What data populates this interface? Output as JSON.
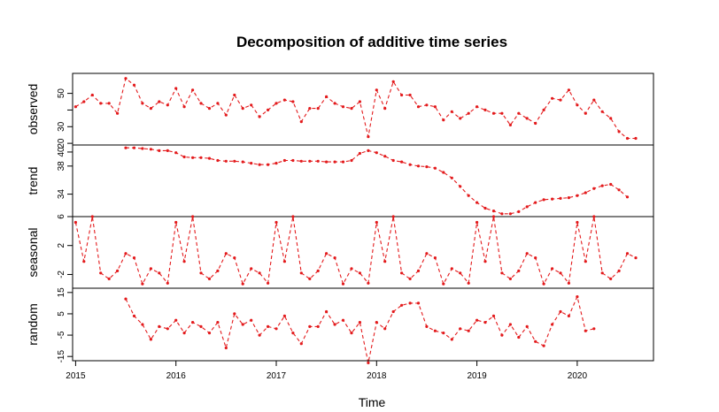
{
  "chart_data": {
    "type": "line",
    "title": "Decomposition of additive time series",
    "xlabel": "Time",
    "x_ticks": [
      "2015",
      "2016",
      "2017",
      "2018",
      "2019",
      "2020"
    ],
    "x_tick_values": [
      2015,
      2016,
      2017,
      2018,
      2019,
      2020
    ],
    "xlim": [
      2014.97,
      2020.76
    ],
    "color": "#e31a1c",
    "series_style": "dashed line with points",
    "panels": [
      {
        "name": "observed",
        "ylim": [
          19,
          62
        ],
        "y_ticks": [
          20,
          30,
          40,
          50
        ],
        "y_tick_labels": [
          "20",
          "30",
          "",
          "50"
        ],
        "start": 2015.0,
        "step": 0.083333,
        "values": [
          42,
          45,
          49,
          44,
          44,
          38,
          59,
          55,
          44,
          41,
          45,
          43,
          53,
          42,
          52,
          44,
          41,
          44,
          37,
          49,
          41,
          43,
          36,
          40,
          44,
          46,
          45,
          33,
          41,
          41,
          48,
          44,
          42,
          41,
          45,
          24,
          52,
          41,
          57,
          49,
          49,
          42,
          43,
          42,
          34,
          39,
          35,
          38,
          42,
          40,
          38,
          38,
          31,
          38,
          35,
          32,
          40,
          47,
          46,
          52,
          43,
          38,
          46,
          39,
          35,
          27,
          23,
          23
        ]
      },
      {
        "name": "trend",
        "ylim": [
          30.8,
          41.0
        ],
        "y_ticks": [
          34,
          38,
          40
        ],
        "y_tick_labels": [
          "34",
          "38",
          "40"
        ],
        "start": 2015.5,
        "step": 0.083333,
        "values": [
          40.6,
          40.6,
          40.5,
          40.4,
          40.2,
          40.2,
          39.9,
          39.3,
          39.2,
          39.2,
          39.1,
          38.8,
          38.7,
          38.7,
          38.6,
          38.4,
          38.2,
          38.2,
          38.4,
          38.8,
          38.8,
          38.7,
          38.7,
          38.7,
          38.6,
          38.6,
          38.6,
          38.8,
          39.8,
          40.2,
          39.9,
          39.4,
          38.8,
          38.6,
          38.2,
          38.0,
          37.9,
          37.7,
          37.1,
          36.3,
          35.1,
          33.8,
          32.8,
          32.0,
          31.6,
          31.2,
          31.2,
          31.5,
          32.2,
          32.8,
          33.2,
          33.3,
          33.4,
          33.5,
          33.8,
          34.2,
          34.8,
          35.2,
          35.4,
          34.6,
          33.6
        ]
      },
      {
        "name": "seasonal",
        "ylim": [
          -3.9,
          6.0
        ],
        "y_ticks": [
          -2,
          2,
          6
        ],
        "y_tick_labels": [
          "-2",
          "2",
          "6"
        ],
        "start": 2015.0,
        "step": 0.083333,
        "values": [
          5.2,
          -0.2,
          6.0,
          -1.8,
          -2.6,
          -1.5,
          0.9,
          0.3,
          -3.3,
          -1.2,
          -1.8,
          -3.2,
          5.2,
          -0.2,
          6.0,
          -1.8,
          -2.6,
          -1.5,
          0.9,
          0.3,
          -3.3,
          -1.2,
          -1.8,
          -3.2,
          5.2,
          -0.2,
          6.0,
          -1.8,
          -2.6,
          -1.5,
          0.9,
          0.3,
          -3.3,
          -1.2,
          -1.8,
          -3.2,
          5.2,
          -0.2,
          6.0,
          -1.8,
          -2.6,
          -1.5,
          0.9,
          0.3,
          -3.3,
          -1.2,
          -1.8,
          -3.2,
          5.2,
          -0.2,
          6.0,
          -1.8,
          -2.6,
          -1.5,
          0.9,
          0.3,
          -3.3,
          -1.2,
          -1.8,
          -3.2,
          5.2,
          -0.2,
          6.0,
          -1.8,
          -2.6,
          -1.5,
          0.9,
          0.3
        ]
      },
      {
        "name": "random",
        "ylim": [
          -17,
          17
        ],
        "y_ticks": [
          -15,
          -5,
          5,
          15
        ],
        "y_tick_labels": [
          "-15",
          "-5",
          "5",
          "15"
        ],
        "start": 2015.5,
        "step": 0.083333,
        "values": [
          12,
          4,
          0,
          -7,
          -1,
          -2,
          2,
          -4,
          1,
          -1,
          -4,
          1,
          -11,
          5,
          0,
          2,
          -5,
          -1,
          -2,
          4,
          -4,
          -9,
          -1,
          -1,
          6,
          0,
          2,
          -4,
          1,
          -18,
          1,
          -2,
          6,
          9,
          10,
          10,
          -1,
          -3,
          -4,
          -7,
          -2,
          -3,
          2,
          1,
          4,
          -5,
          0,
          -6,
          -1,
          -8,
          -10,
          0,
          6,
          4,
          13,
          -3,
          -2
        ]
      }
    ]
  }
}
